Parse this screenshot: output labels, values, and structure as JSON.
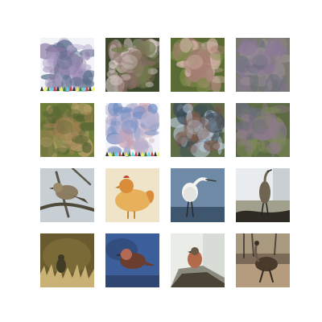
{
  "grid": {
    "rows": 4,
    "cols": 4,
    "background": "#ffffff",
    "tiles": [
      {
        "row": 0,
        "col": 0,
        "kind": "generated",
        "palette": [
          "#f2f3f7",
          "#8d7aa2",
          "#5b6f8b",
          "#b0a4c8"
        ],
        "bottom_strip": true
      },
      {
        "row": 0,
        "col": 1,
        "kind": "generated",
        "palette": [
          "#3e4a2b",
          "#8b6f67",
          "#d8c8c8",
          "#6f7a4a"
        ],
        "bottom_strip": false
      },
      {
        "row": 0,
        "col": 2,
        "kind": "generated",
        "palette": [
          "#5a6b33",
          "#a57f73",
          "#d9b8b0",
          "#7a8a48"
        ],
        "bottom_strip": false
      },
      {
        "row": 0,
        "col": 3,
        "kind": "generated",
        "palette": [
          "#7b7a6f",
          "#8a7897",
          "#6a6f7d",
          "#9a8f93"
        ],
        "bottom_strip": false
      },
      {
        "row": 1,
        "col": 0,
        "kind": "generated",
        "palette": [
          "#6e7e3a",
          "#a08152",
          "#566433",
          "#bca06d"
        ],
        "bottom_strip": false
      },
      {
        "row": 1,
        "col": 1,
        "kind": "generated",
        "palette": [
          "#f2f4f8",
          "#b7b2cf",
          "#6f8cc3",
          "#c79aa9"
        ],
        "bottom_strip": true
      },
      {
        "row": 1,
        "col": 2,
        "kind": "generated",
        "palette": [
          "#5e6d48",
          "#7e5a4c",
          "#b8c6d8",
          "#3a4b5a"
        ],
        "bottom_strip": false
      },
      {
        "row": 1,
        "col": 3,
        "kind": "generated",
        "palette": [
          "#5d6b45",
          "#8f7a8e",
          "#6c6e7d",
          "#7d8b55"
        ],
        "bottom_strip": false
      },
      {
        "row": 2,
        "col": 0,
        "kind": "photo",
        "subject": "sparrow-on-branch",
        "palette": [
          "#c7ced4",
          "#8b7c62",
          "#4f4a3a",
          "#9a8a6a"
        ]
      },
      {
        "row": 2,
        "col": 1,
        "kind": "photo",
        "subject": "hen",
        "palette": [
          "#f0e4c8",
          "#d98c3a",
          "#c23e2c",
          "#e7b15c"
        ]
      },
      {
        "row": 2,
        "col": 2,
        "kind": "photo",
        "subject": "egret",
        "palette": [
          "#6f8aa6",
          "#f2f2f0",
          "#3f566f",
          "#d8d8d6"
        ]
      },
      {
        "row": 2,
        "col": 3,
        "kind": "photo",
        "subject": "heron-standing",
        "palette": [
          "#e9ecef",
          "#2e2b25",
          "#6e6450",
          "#a0a08d"
        ]
      },
      {
        "row": 3,
        "col": 0,
        "kind": "photo",
        "subject": "small-bird-on-grass",
        "palette": [
          "#6a5a2f",
          "#c9b175",
          "#403b25",
          "#8a7a3f"
        ]
      },
      {
        "row": 3,
        "col": 1,
        "kind": "photo",
        "subject": "thrush-blue-bg",
        "palette": [
          "#3c5f9b",
          "#6b3d2f",
          "#2a3c62",
          "#b46a52"
        ]
      },
      {
        "row": 3,
        "col": 2,
        "kind": "photo",
        "subject": "robin-on-log",
        "palette": [
          "#e9ece7",
          "#b36a4a",
          "#4a4437",
          "#8a8a7d"
        ]
      },
      {
        "row": 3,
        "col": 3,
        "kind": "photo",
        "subject": "emu-on-ground",
        "palette": [
          "#7b6a57",
          "#4a3a2b",
          "#b69c7e",
          "#2f2a24"
        ]
      }
    ]
  }
}
